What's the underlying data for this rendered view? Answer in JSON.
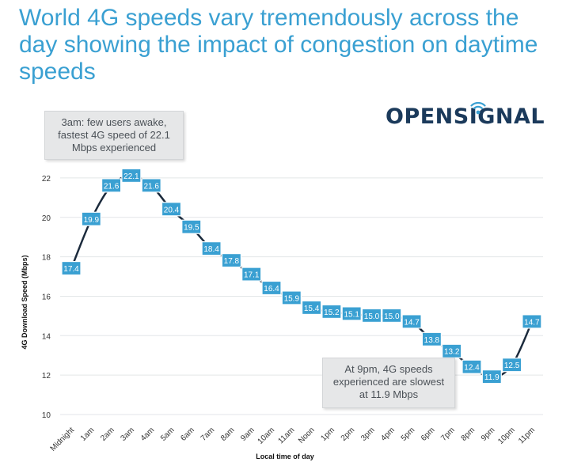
{
  "header": {
    "title": "World 4G speeds vary tremendously across the day showing the impact of congestion on daytime speeds"
  },
  "logo": {
    "text": "OPENSIGNAL",
    "colors": {
      "text": "#1b3a5b",
      "signal": "#3aa0d2"
    }
  },
  "callouts": {
    "peak": "3am: few users awake, fastest 4G speed of 22.1 Mbps experienced",
    "trough": "At 9pm, 4G speeds experienced are slowest at 11.9 Mbps"
  },
  "colors": {
    "title": "#3aa0d2",
    "line": "#1b2a3c",
    "label_box": "#3aa0d2",
    "grid": "#e3e6e8"
  },
  "chart_data": {
    "type": "line",
    "title": "World 4G speeds vary tremendously across the day showing the impact of congestion on daytime speeds",
    "xlabel": "Local time of day",
    "ylabel": "4G Download Speed (Mbps)",
    "ylim": [
      10,
      23
    ],
    "yticks": [
      10,
      12,
      14,
      16,
      18,
      20,
      22
    ],
    "grid": true,
    "categories": [
      "Midnight",
      "1am",
      "2am",
      "3am",
      "4am",
      "5am",
      "6am",
      "7am",
      "8am",
      "9am",
      "10am",
      "11am",
      "Noon",
      "1pm",
      "2pm",
      "3pm",
      "4pm",
      "5pm",
      "6pm",
      "7pm",
      "8pm",
      "9pm",
      "10pm",
      "11pm"
    ],
    "values": [
      17.4,
      19.9,
      21.6,
      22.1,
      21.6,
      20.4,
      19.5,
      18.4,
      17.8,
      17.1,
      16.4,
      15.9,
      15.4,
      15.2,
      15.1,
      15.0,
      15.0,
      14.7,
      13.8,
      13.2,
      12.4,
      11.9,
      12.5,
      14.7
    ],
    "value_labels": [
      "17.4",
      "19.9",
      "21.6",
      "22.1",
      "21.6",
      "20.4",
      "19.5",
      "18.4",
      "17.8",
      "17.1",
      "16.4",
      "15.9",
      "15.4",
      "15.2",
      "15.1",
      "15.0",
      "15.0",
      "14.7",
      "13.8",
      "13.2",
      "12.4",
      "11.9",
      "12.5",
      "14.7"
    ]
  }
}
